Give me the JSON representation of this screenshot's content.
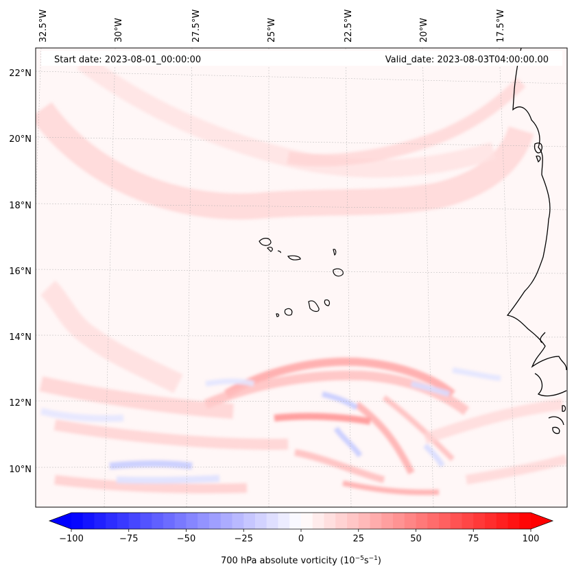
{
  "map": {
    "start_label": "Start date: 2023-08-01_00:00:00",
    "valid_label": "Valid_date: 2023-08-03T04:00:00.00",
    "lon_labels": [
      "32.5°W",
      "30°W",
      "27.5°W",
      "25°W",
      "22.5°W",
      "20°W",
      "17.5°W"
    ],
    "lat_labels": [
      "22°N",
      "20°N",
      "18°N",
      "16°N",
      "14°N",
      "12°N",
      "10°N"
    ],
    "colors": {
      "coastline": "#000000",
      "gridline": "#b0b0b0",
      "positive": "#ff0000",
      "negative": "#0000ff",
      "neutral": "#ffffff"
    }
  },
  "colorbar": {
    "label_text": "700 hPa absolute vorticity (10",
    "label_exp1": "−5",
    "label_mid": "s",
    "label_exp2": "−1",
    "label_close": ")",
    "min": -100,
    "max": 100,
    "tick_values": [
      -100,
      -75,
      -50,
      -25,
      0,
      25,
      50,
      75,
      100
    ],
    "tick_labels": [
      "−100",
      "−75",
      "−50",
      "−25",
      "0",
      "25",
      "50",
      "75",
      "100"
    ],
    "levels": 40
  }
}
